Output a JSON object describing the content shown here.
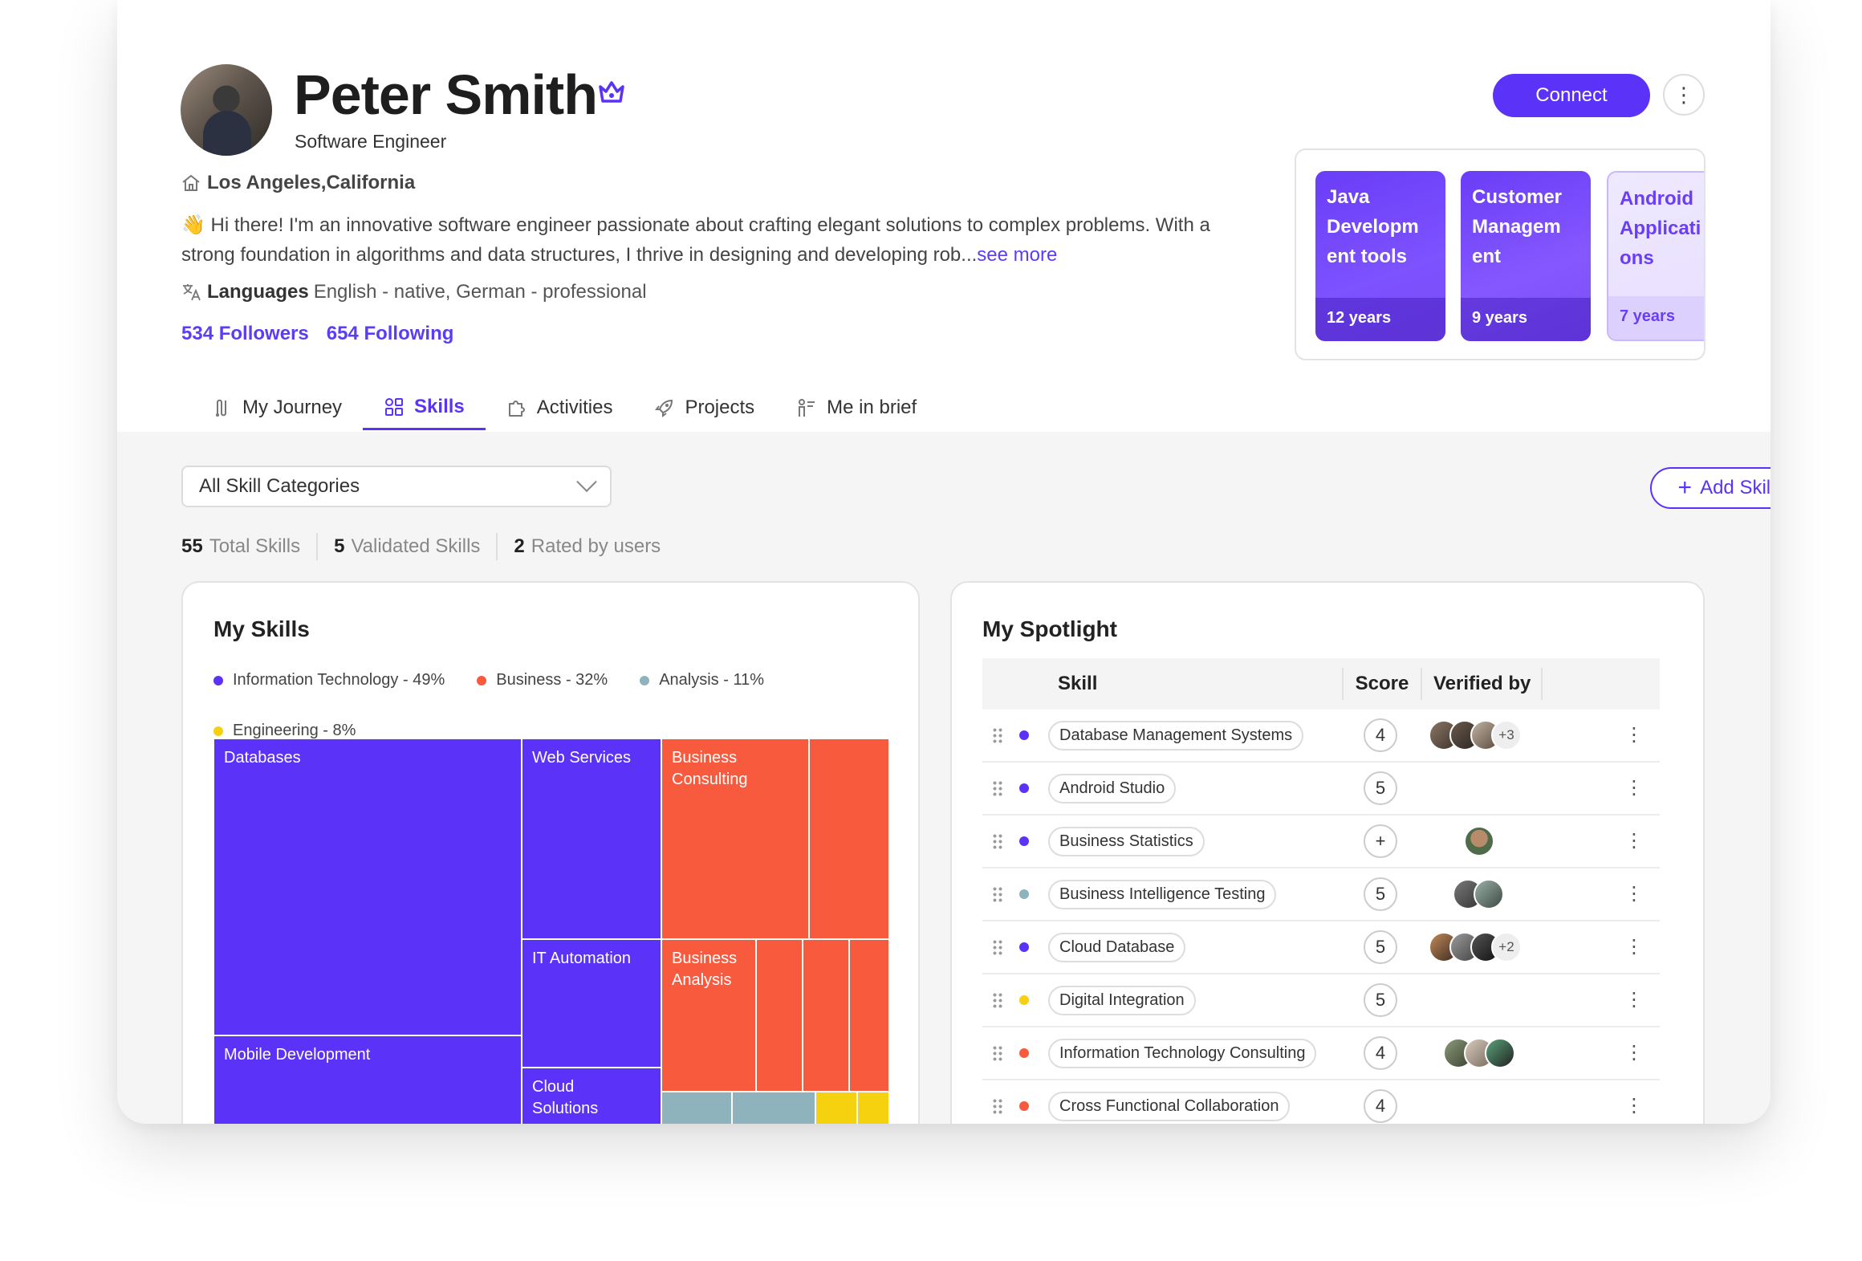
{
  "profile": {
    "name": "Peter Smith",
    "role": "Software Engineer",
    "location": "Los Angeles,California",
    "bio": "👋 Hi there! I'm an innovative software engineer passionate about crafting elegant solutions to complex problems. With a strong foundation in algorithms and data structures, I thrive in designing and developing rob...",
    "see_more": "see more",
    "languages_label": "Languages",
    "languages_value": "English - native, German - professional",
    "followers": "534 Followers",
    "following": "654 Following"
  },
  "actions": {
    "connect": "Connect",
    "more_icon": "vertical-dots-icon"
  },
  "experience": [
    {
      "title": "Java Developm ent tools",
      "years": "12 years"
    },
    {
      "title": "Customer Managem ent",
      "years": "9 years"
    },
    {
      "title": "Android Applicati ons",
      "years": "7 years"
    }
  ],
  "tabs": [
    {
      "label": "My Journey",
      "icon": "journey-icon",
      "active": false
    },
    {
      "label": "Skills",
      "icon": "skills-icon",
      "active": true
    },
    {
      "label": "Activities",
      "icon": "puzzle-icon",
      "active": false
    },
    {
      "label": "Projects",
      "icon": "rocket-icon",
      "active": false
    },
    {
      "label": "Me in brief",
      "icon": "person-list-icon",
      "active": false
    }
  ],
  "filter": {
    "selected": "All Skill Categories"
  },
  "add_skill": "Add Skill",
  "stats": [
    {
      "count": "55",
      "label": "Total Skills"
    },
    {
      "count": "5",
      "label": "Validated Skills"
    },
    {
      "count": "2",
      "label": "Rated by users"
    }
  ],
  "my_skills": {
    "title": "My Skills",
    "legend": [
      {
        "label": "Information Technology - 49%",
        "color": "#5b32f7"
      },
      {
        "label": "Business - 32%",
        "color": "#f85a3e"
      },
      {
        "label": "Analysis - 11%",
        "color": "#8fb3bd"
      },
      {
        "label": "Engineering - 8%",
        "color": "#f6d10f"
      }
    ],
    "treemap_labels": {
      "databases": "Databases",
      "web_services": "Web Services",
      "business_consulting": "Business Consulting",
      "it_automation": "IT Automation",
      "business_analysis": "Business Analysis",
      "mobile_development": "Mobile Development",
      "cloud_solutions": "Cloud Solutions"
    }
  },
  "spotlight": {
    "title": "My Spotlight",
    "headers": {
      "skill": "Skill",
      "score": "Score",
      "verified": "Verified by"
    },
    "rows": [
      {
        "skill": "Database Management Systems",
        "color": "#5b32f7",
        "score": "4",
        "verifiers_extra": "+3"
      },
      {
        "skill": "Android Studio",
        "color": "#5b32f7",
        "score": "5",
        "verifiers_extra": ""
      },
      {
        "skill": "Business Statistics",
        "color": "#5b32f7",
        "score": "+",
        "verifiers_extra": ""
      },
      {
        "skill": "Business Intelligence Testing",
        "color": "#8fb3bd",
        "score": "5",
        "verifiers_extra": ""
      },
      {
        "skill": "Cloud Database",
        "color": "#5b32f7",
        "score": "5",
        "verifiers_extra": "+2"
      },
      {
        "skill": "Digital Integration",
        "color": "#f6d10f",
        "score": "5",
        "verifiers_extra": ""
      },
      {
        "skill": "Information Technology Consulting",
        "color": "#f85a3e",
        "score": "4",
        "verifiers_extra": ""
      },
      {
        "skill": "Cross Functional Collaboration",
        "color": "#f85a3e",
        "score": "4",
        "verifiers_extra": ""
      }
    ]
  },
  "colors": {
    "accent": "#5b32f7",
    "business": "#f85a3e",
    "analysis": "#8fb3bd",
    "engineering": "#f6d10f"
  }
}
